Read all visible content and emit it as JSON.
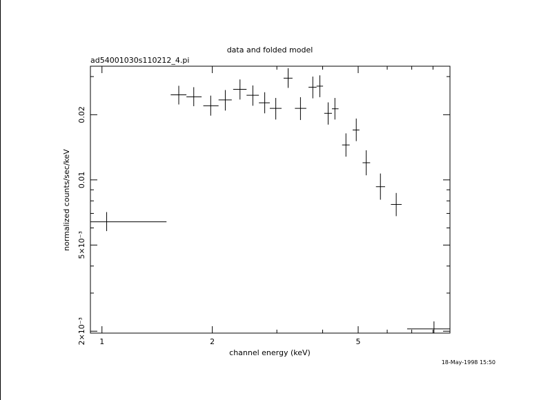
{
  "header": {
    "title": "data and folded model",
    "filename": "ad54001030s110212_4.pi",
    "timestamp": "18-May-1998 15:50"
  },
  "chart_data": {
    "type": "scatter",
    "title": "data and folded model",
    "subtitle": "ad54001030s110212_4.pi",
    "xlabel": "channel energy (keV)",
    "ylabel": "normalized counts/sec/keV",
    "xscale": "log",
    "yscale": "log",
    "xlim": [
      0.93,
      8.9
    ],
    "ylim": [
      0.00196,
      0.0335
    ],
    "xticks": [
      {
        "value": 1,
        "label": "1"
      },
      {
        "value": 2,
        "label": "2"
      },
      {
        "value": 5,
        "label": "5"
      }
    ],
    "yticks": [
      {
        "value": 0.002,
        "label": "2×10⁻³"
      },
      {
        "value": 0.005,
        "label": "5×10⁻³"
      },
      {
        "value": 0.01,
        "label": "0.01"
      },
      {
        "value": 0.02,
        "label": "0.02"
      }
    ],
    "grid": false,
    "series": [
      {
        "points": [
          {
            "x": 1.03,
            "xlo": 0.93,
            "xhi": 1.5,
            "y": 0.0064,
            "ylo": 0.0058,
            "yhi": 0.0071
          },
          {
            "x": 1.62,
            "xlo": 1.54,
            "xhi": 1.7,
            "y": 0.0247,
            "ylo": 0.0223,
            "yhi": 0.0272
          },
          {
            "x": 1.78,
            "xlo": 1.7,
            "xhi": 1.87,
            "y": 0.0242,
            "ylo": 0.0219,
            "yhi": 0.0268
          },
          {
            "x": 1.98,
            "xlo": 1.89,
            "xhi": 2.08,
            "y": 0.022,
            "ylo": 0.0198,
            "yhi": 0.0245
          },
          {
            "x": 2.17,
            "xlo": 2.08,
            "xhi": 2.26,
            "y": 0.0234,
            "ylo": 0.0209,
            "yhi": 0.026
          },
          {
            "x": 2.38,
            "xlo": 2.28,
            "xhi": 2.48,
            "y": 0.0262,
            "ylo": 0.0235,
            "yhi": 0.0291
          },
          {
            "x": 2.58,
            "xlo": 2.48,
            "xhi": 2.68,
            "y": 0.0246,
            "ylo": 0.022,
            "yhi": 0.0273
          },
          {
            "x": 2.78,
            "xlo": 2.68,
            "xhi": 2.87,
            "y": 0.0227,
            "ylo": 0.0203,
            "yhi": 0.0254
          },
          {
            "x": 2.98,
            "xlo": 2.87,
            "xhi": 3.09,
            "y": 0.0214,
            "ylo": 0.019,
            "yhi": 0.0239
          },
          {
            "x": 3.22,
            "xlo": 3.13,
            "xhi": 3.31,
            "y": 0.0295,
            "ylo": 0.0266,
            "yhi": 0.0328
          },
          {
            "x": 3.48,
            "xlo": 3.36,
            "xhi": 3.61,
            "y": 0.0214,
            "ylo": 0.0189,
            "yhi": 0.0241
          },
          {
            "x": 3.76,
            "xlo": 3.66,
            "xhi": 3.85,
            "y": 0.0268,
            "ylo": 0.0238,
            "yhi": 0.03
          },
          {
            "x": 3.93,
            "xlo": 3.85,
            "xhi": 4.01,
            "y": 0.0271,
            "ylo": 0.0241,
            "yhi": 0.0304
          },
          {
            "x": 4.14,
            "xlo": 4.04,
            "xhi": 4.24,
            "y": 0.0203,
            "ylo": 0.018,
            "yhi": 0.0228
          },
          {
            "x": 4.32,
            "xlo": 4.24,
            "xhi": 4.42,
            "y": 0.0213,
            "ylo": 0.019,
            "yhi": 0.0239
          },
          {
            "x": 4.63,
            "xlo": 4.52,
            "xhi": 4.74,
            "y": 0.0145,
            "ylo": 0.0128,
            "yhi": 0.0164
          },
          {
            "x": 4.94,
            "xlo": 4.83,
            "xhi": 5.04,
            "y": 0.017,
            "ylo": 0.0151,
            "yhi": 0.0192
          },
          {
            "x": 5.26,
            "xlo": 5.14,
            "xhi": 5.39,
            "y": 0.012,
            "ylo": 0.0105,
            "yhi": 0.0137
          },
          {
            "x": 5.75,
            "xlo": 5.59,
            "xhi": 5.92,
            "y": 0.0093,
            "ylo": 0.0081,
            "yhi": 0.0107
          },
          {
            "x": 6.35,
            "xlo": 6.14,
            "xhi": 6.57,
            "y": 0.0077,
            "ylo": 0.0068,
            "yhi": 0.0087
          },
          {
            "x": 8.05,
            "xlo": 6.8,
            "xhi": 8.9,
            "y": 0.00205,
            "ylo": 0.00196,
            "yhi": 0.00222
          }
        ]
      }
    ]
  }
}
